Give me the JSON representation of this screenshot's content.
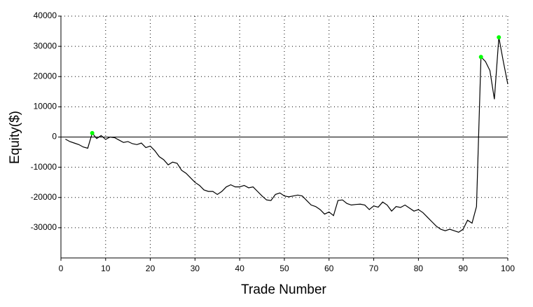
{
  "chart_data": {
    "type": "line",
    "x_label": "Trade Number",
    "y_label": "Equity($)",
    "x": [
      1,
      2,
      3,
      4,
      5,
      6,
      7,
      8,
      9,
      10,
      11,
      12,
      13,
      14,
      15,
      16,
      17,
      18,
      19,
      20,
      21,
      22,
      23,
      24,
      25,
      26,
      27,
      28,
      29,
      30,
      31,
      32,
      33,
      34,
      35,
      36,
      37,
      38,
      39,
      40,
      41,
      42,
      43,
      44,
      45,
      46,
      47,
      48,
      49,
      50,
      51,
      52,
      53,
      54,
      55,
      56,
      57,
      58,
      59,
      60,
      61,
      62,
      63,
      64,
      65,
      66,
      67,
      68,
      69,
      70,
      71,
      72,
      73,
      74,
      75,
      76,
      77,
      78,
      79,
      80,
      81,
      82,
      83,
      84,
      85,
      86,
      87,
      88,
      89,
      90,
      91,
      92,
      93,
      94,
      95,
      96,
      97,
      98,
      99,
      100
    ],
    "values": [
      -700,
      -1500,
      -2000,
      -2500,
      -3300,
      -3700,
      1300,
      -500,
      500,
      -800,
      0,
      -200,
      -1000,
      -1800,
      -1500,
      -2200,
      -2500,
      -2000,
      -3500,
      -3000,
      -4500,
      -6500,
      -7500,
      -9200,
      -8300,
      -8700,
      -11000,
      -12000,
      -13500,
      -15000,
      -16000,
      -17500,
      -18000,
      -18000,
      -19000,
      -18000,
      -16500,
      -15800,
      -16500,
      -16500,
      -16000,
      -16800,
      -16500,
      -18000,
      -19500,
      -20800,
      -21000,
      -19000,
      -18500,
      -19500,
      -19800,
      -19500,
      -19200,
      -19500,
      -21000,
      -22500,
      -23000,
      -24000,
      -25500,
      -24800,
      -26000,
      -21000,
      -20800,
      -22000,
      -22500,
      -22300,
      -22200,
      -22500,
      -24000,
      -22800,
      -23200,
      -21500,
      -22500,
      -24500,
      -23000,
      -23300,
      -22500,
      -23500,
      -24500,
      -24000,
      -25000,
      -26500,
      -28000,
      -29500,
      -30500,
      -31000,
      -30500,
      -31000,
      -31500,
      -30500,
      -27500,
      -28500,
      -23000,
      26500,
      25000,
      22000,
      12500,
      33000,
      25000,
      17500
    ],
    "color": "#000000",
    "highlights": {
      "x": [
        7,
        94,
        98
      ],
      "values": [
        1300,
        26500,
        33000
      ],
      "color": "#00ff00"
    },
    "xlim": [
      0,
      100
    ],
    "xticks": [
      0,
      10,
      20,
      30,
      40,
      50,
      60,
      70,
      80,
      90,
      100
    ],
    "ylim": [
      -40000,
      40000
    ],
    "yticks": [
      -30000,
      -20000,
      -10000,
      0,
      10000,
      20000,
      30000,
      40000
    ],
    "grid": true
  }
}
